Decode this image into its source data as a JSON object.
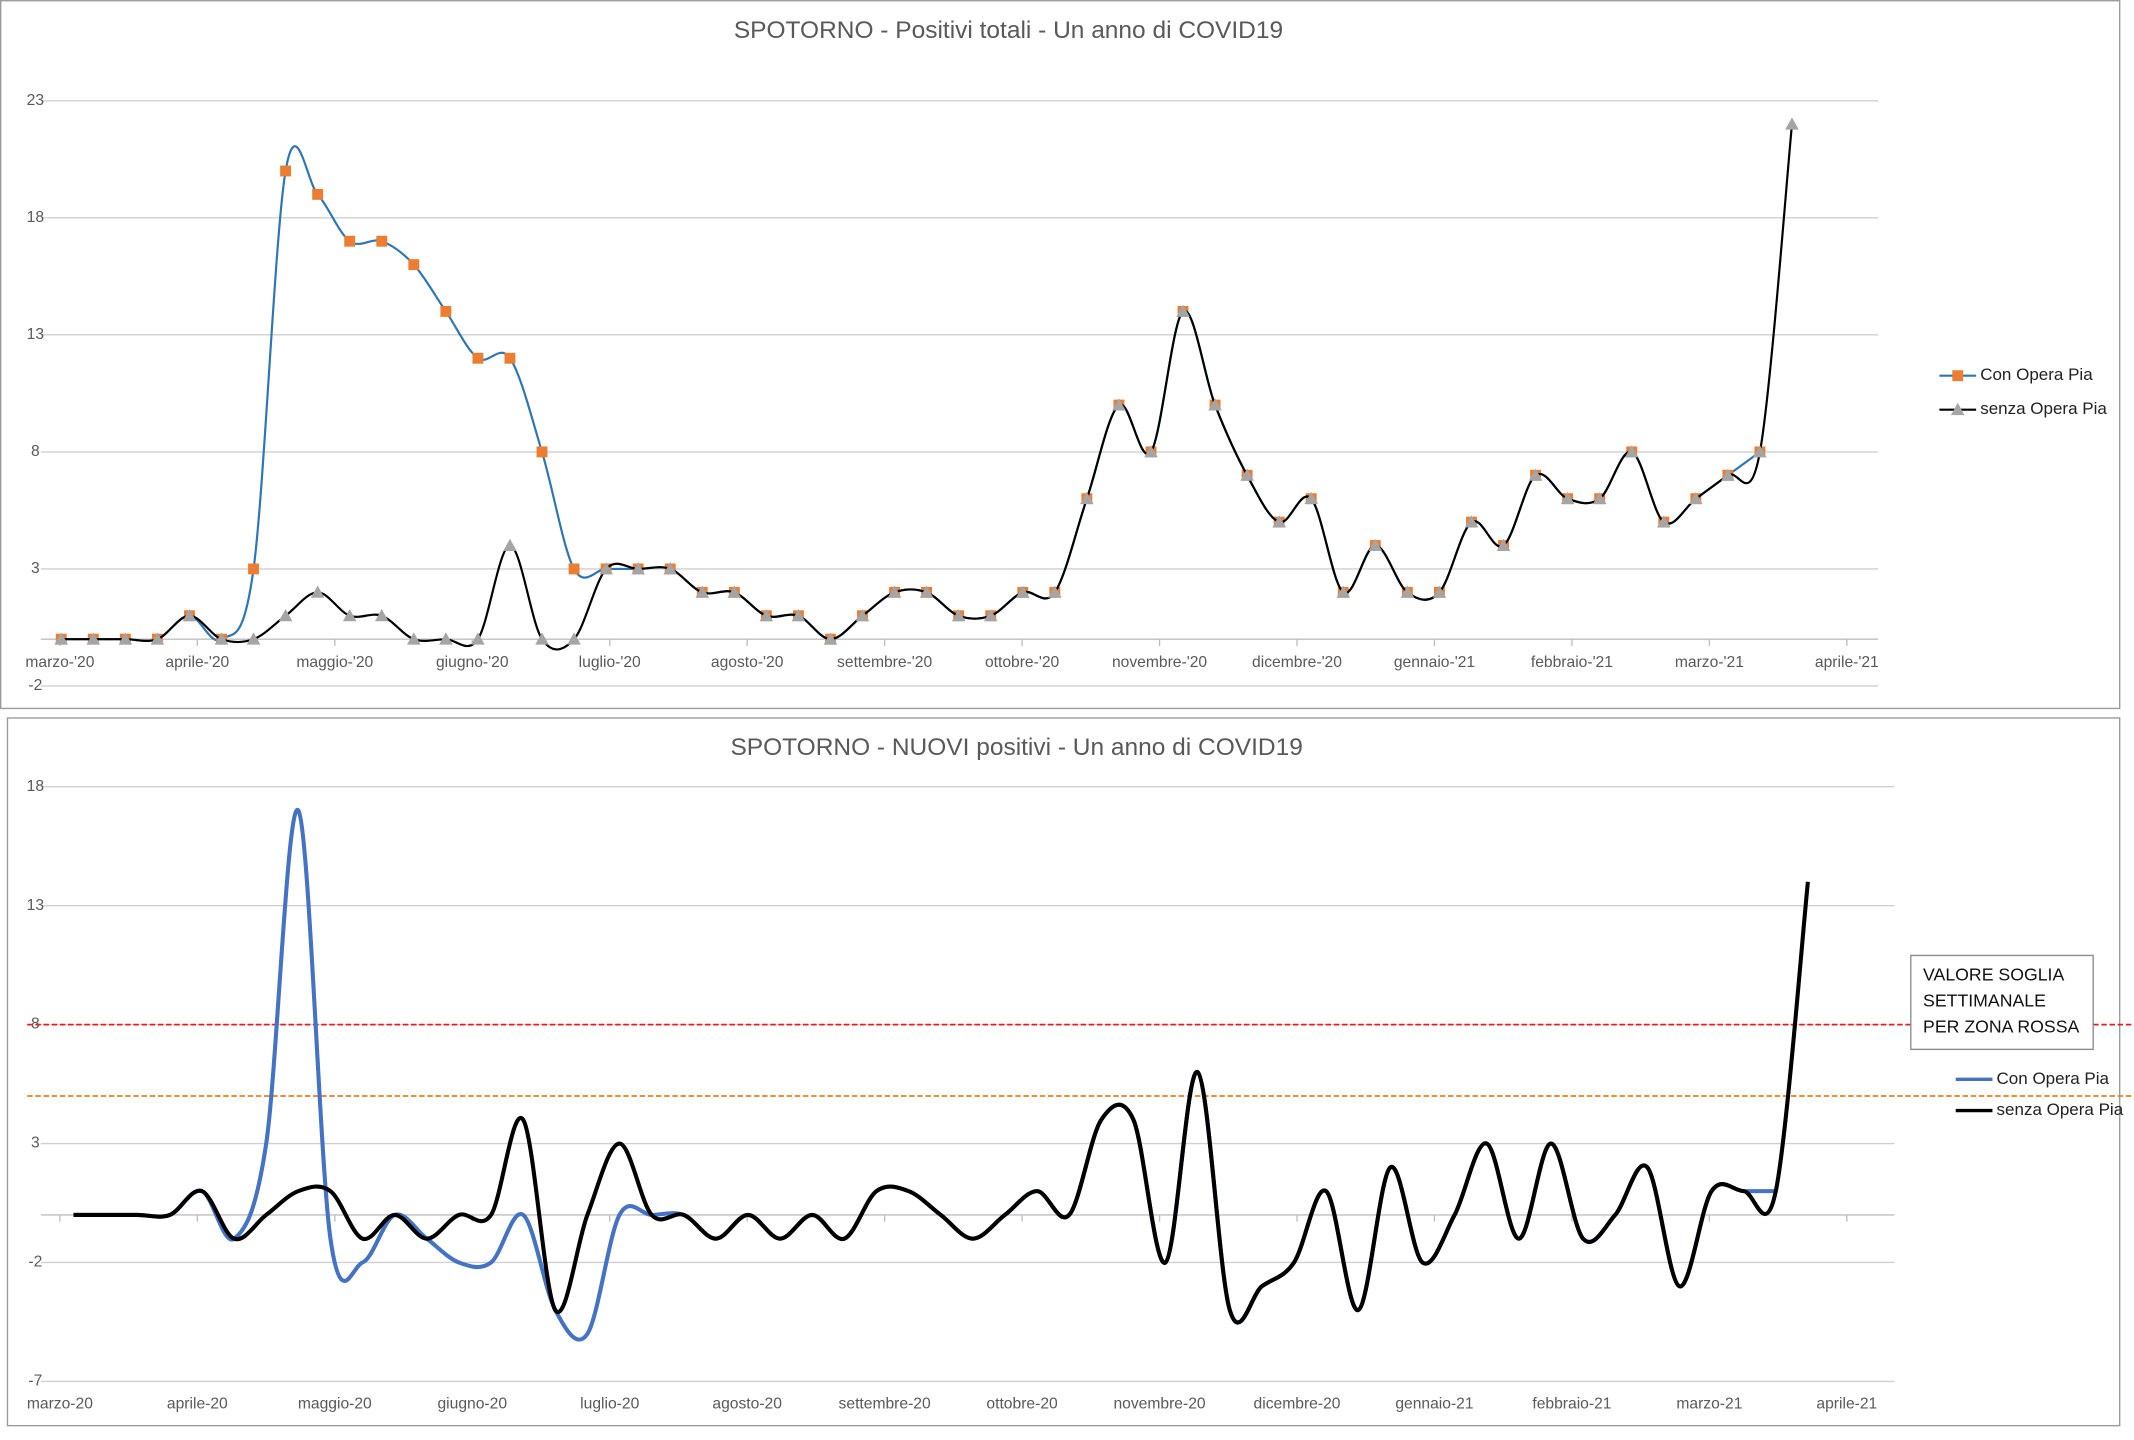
{
  "chart_data": [
    {
      "type": "line",
      "title": "SPOTORNO - Positivi totali - Un anno di COVID19",
      "x_labels": [
        "marzo-'20",
        "aprile-'20",
        "maggio-'20",
        "giugno-'20",
        "luglio-'20",
        "agosto-'20",
        "settembre-'20",
        "ottobre-'20",
        "novembre-'20",
        "dicembre-'20",
        "gennaio-'21",
        "febbraio-'21",
        "marzo-'21",
        "aprile-'21"
      ],
      "ylim": [
        -2,
        23
      ],
      "yticks": [
        -2,
        3,
        8,
        13,
        18,
        23
      ],
      "grid": true,
      "smooth": true,
      "series": [
        {
          "name": "Con Opera Pia",
          "color": "#2e75b6",
          "marker": "square",
          "marker_color": "#ed7d31",
          "values": [
            0,
            0,
            0,
            0,
            1,
            0,
            3,
            20,
            19,
            17,
            17,
            16,
            14,
            12,
            12,
            8,
            3,
            3,
            3,
            3,
            2,
            2,
            1,
            1,
            0,
            1,
            2,
            2,
            1,
            1,
            2,
            2,
            6,
            10,
            8,
            14,
            10,
            7,
            5,
            6,
            2,
            4,
            2,
            2,
            5,
            4,
            7,
            6,
            6,
            8,
            5,
            6,
            7,
            8,
            null
          ]
        },
        {
          "name": "senza Opera Pia",
          "color": "#000000",
          "marker": "triangle",
          "marker_color": "#a5a5a5",
          "values": [
            0,
            0,
            0,
            0,
            1,
            0,
            0,
            1,
            2,
            1,
            1,
            0,
            0,
            0,
            4,
            0,
            0,
            3,
            3,
            3,
            2,
            2,
            1,
            1,
            0,
            1,
            2,
            2,
            1,
            1,
            2,
            2,
            6,
            10,
            8,
            14,
            10,
            7,
            5,
            6,
            2,
            4,
            2,
            2,
            5,
            4,
            7,
            6,
            6,
            8,
            5,
            6,
            7,
            8,
            22
          ]
        }
      ]
    },
    {
      "type": "line",
      "title": "SPOTORNO - NUOVI positivi - Un anno di COVID19",
      "x_labels": [
        "marzo-20",
        "aprile-20",
        "maggio-20",
        "giugno-20",
        "luglio-20",
        "agosto-20",
        "settembre-20",
        "ottobre-20",
        "novembre-20",
        "dicembre-20",
        "gennaio-21",
        "febbraio-21",
        "marzo-21",
        "aprile-21"
      ],
      "ylim": [
        -7,
        18
      ],
      "yticks": [
        -7,
        -2,
        3,
        8,
        13,
        18
      ],
      "grid": true,
      "smooth": true,
      "reference_lines": [
        {
          "value": 8,
          "color": "#e02020"
        },
        {
          "value": 5,
          "color": "#e87d2b"
        }
      ],
      "annotation": [
        "VALORE SOGLIA",
        "SETTIMANALE",
        "PER ZONA ROSSA"
      ],
      "series": [
        {
          "name": "Con Opera Pia",
          "color": "#4472c4",
          "values": [
            0,
            0,
            0,
            0,
            1,
            -1,
            3,
            17,
            -1,
            -2,
            0,
            -1,
            -2,
            -2,
            0,
            -4,
            -5,
            0,
            0,
            0,
            -1,
            0,
            -1,
            0,
            -1,
            1,
            1,
            0,
            -1,
            0,
            1,
            0,
            4,
            4,
            -2,
            6,
            -4,
            -3,
            -2,
            1,
            -4,
            2,
            -2,
            0,
            3,
            -1,
            3,
            -1,
            0,
            2,
            -3,
            1,
            1,
            1
          ]
        },
        {
          "name": "senza Opera Pia",
          "color": "#000000",
          "values": [
            0,
            0,
            0,
            0,
            1,
            -1,
            0,
            1,
            1,
            -1,
            0,
            -1,
            0,
            0,
            4,
            -4,
            0,
            3,
            0,
            0,
            -1,
            0,
            -1,
            0,
            -1,
            1,
            1,
            0,
            -1,
            0,
            1,
            0,
            4,
            4,
            -2,
            6,
            -4,
            -3,
            -2,
            1,
            -4,
            2,
            -2,
            0,
            3,
            -1,
            3,
            -1,
            0,
            2,
            -3,
            1,
            1,
            1,
            14
          ]
        }
      ]
    }
  ]
}
